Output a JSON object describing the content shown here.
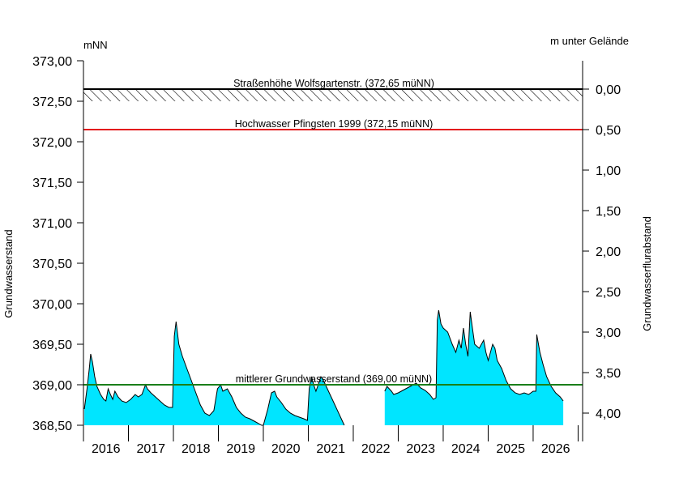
{
  "chart_data": {
    "type": "area",
    "left_unit": "mNN",
    "right_unit": "m unter Gelände",
    "ylabel": "Grundwasserstand",
    "ylabel_right": "Grundwasserflurabstand",
    "ylim": [
      368.5,
      373.0
    ],
    "ground_level": 372.65,
    "y_ticks": [
      "368,50",
      "369,00",
      "369,50",
      "370,00",
      "370,50",
      "371,00",
      "371,50",
      "372,00",
      "372,50",
      "373,00"
    ],
    "y_right_ticks": [
      "0,00",
      "0,50",
      "1,00",
      "1,50",
      "2,00",
      "2,50",
      "3,00",
      "3,50",
      "4,00"
    ],
    "x_labels": [
      "2016",
      "2017",
      "2018",
      "2019",
      "2020",
      "2021",
      "2022",
      "2023",
      "2024",
      "2025",
      "2026"
    ],
    "xlim": [
      2015.5,
      2026.6
    ],
    "fill_color": "#00e5ff",
    "reference_lines": [
      {
        "label": "Straßenhöhe Wolfsgartenstr. (372,65 müNN)",
        "value": 372.65,
        "color": "#000000"
      },
      {
        "label": "Hochwasser Pfingsten 1999 (372,15 müNN)",
        "value": 372.15,
        "color": "#e31a1c"
      },
      {
        "label": "mittlerer Grundwasserstand (369,00 müNN)",
        "value": 369.0,
        "color": "#1a7f1a"
      }
    ],
    "series": [
      {
        "values": [
          [
            2015.52,
            368.7
          ],
          [
            2015.58,
            368.95
          ],
          [
            2015.63,
            369.2
          ],
          [
            2015.66,
            369.38
          ],
          [
            2015.7,
            369.28
          ],
          [
            2015.75,
            369.1
          ],
          [
            2015.8,
            368.98
          ],
          [
            2015.88,
            368.88
          ],
          [
            2015.95,
            368.82
          ],
          [
            2016.0,
            368.8
          ],
          [
            2016.05,
            368.95
          ],
          [
            2016.1,
            368.88
          ],
          [
            2016.15,
            368.82
          ],
          [
            2016.2,
            368.92
          ],
          [
            2016.27,
            368.85
          ],
          [
            2016.35,
            368.8
          ],
          [
            2016.45,
            368.78
          ],
          [
            2016.55,
            368.82
          ],
          [
            2016.65,
            368.88
          ],
          [
            2016.72,
            368.85
          ],
          [
            2016.8,
            368.88
          ],
          [
            2016.88,
            369.0
          ],
          [
            2016.92,
            368.95
          ],
          [
            2017.0,
            368.9
          ],
          [
            2017.1,
            368.85
          ],
          [
            2017.2,
            368.8
          ],
          [
            2017.3,
            368.75
          ],
          [
            2017.4,
            368.72
          ],
          [
            2017.48,
            368.72
          ],
          [
            2017.52,
            369.6
          ],
          [
            2017.56,
            369.78
          ],
          [
            2017.62,
            369.5
          ],
          [
            2017.7,
            369.35
          ],
          [
            2017.8,
            369.2
          ],
          [
            2017.9,
            369.05
          ],
          [
            2018.0,
            368.9
          ],
          [
            2018.1,
            368.75
          ],
          [
            2018.2,
            368.65
          ],
          [
            2018.3,
            368.62
          ],
          [
            2018.4,
            368.68
          ],
          [
            2018.48,
            368.95
          ],
          [
            2018.55,
            369.0
          ],
          [
            2018.6,
            368.92
          ],
          [
            2018.7,
            368.95
          ],
          [
            2018.8,
            368.85
          ],
          [
            2018.9,
            368.72
          ],
          [
            2019.0,
            368.65
          ],
          [
            2019.1,
            368.6
          ],
          [
            2019.2,
            368.58
          ],
          [
            2019.3,
            368.55
          ],
          [
            2019.4,
            368.52
          ],
          [
            2019.46,
            368.5
          ],
          [
            2019.5,
            368.5
          ],
          [
            2019.6,
            368.7
          ],
          [
            2019.68,
            368.9
          ],
          [
            2019.75,
            368.92
          ],
          [
            2019.8,
            368.85
          ],
          [
            2019.9,
            368.78
          ],
          [
            2020.0,
            368.7
          ],
          [
            2020.1,
            368.65
          ],
          [
            2020.2,
            368.62
          ],
          [
            2020.3,
            368.6
          ],
          [
            2020.4,
            368.58
          ],
          [
            2020.48,
            368.56
          ],
          [
            2020.52,
            368.95
          ],
          [
            2020.57,
            369.1
          ],
          [
            2020.62,
            369.0
          ],
          [
            2020.67,
            368.92
          ],
          [
            2020.72,
            369.0
          ],
          [
            2020.78,
            369.1
          ],
          [
            2020.84,
            369.05
          ],
          [
            2021.05,
            368.8
          ],
          [
            2021.3,
            368.5
          ]
        ]
      },
      {
        "values": [
          [
            2022.2,
            368.92
          ],
          [
            2022.25,
            368.98
          ],
          [
            2022.35,
            368.92
          ],
          [
            2022.4,
            368.88
          ],
          [
            2022.5,
            368.9
          ],
          [
            2022.6,
            368.93
          ],
          [
            2022.7,
            368.96
          ],
          [
            2022.8,
            368.99
          ],
          [
            2022.9,
            369.02
          ],
          [
            2023.0,
            368.96
          ],
          [
            2023.1,
            368.93
          ],
          [
            2023.2,
            368.88
          ],
          [
            2023.28,
            368.82
          ],
          [
            2023.34,
            368.84
          ],
          [
            2023.37,
            369.8
          ],
          [
            2023.4,
            369.92
          ],
          [
            2023.45,
            369.75
          ],
          [
            2023.5,
            369.7
          ],
          [
            2023.6,
            369.65
          ],
          [
            2023.7,
            369.5
          ],
          [
            2023.78,
            369.4
          ],
          [
            2023.85,
            369.55
          ],
          [
            2023.9,
            369.45
          ],
          [
            2023.95,
            369.7
          ],
          [
            2024.0,
            369.5
          ],
          [
            2024.05,
            369.35
          ],
          [
            2024.1,
            369.9
          ],
          [
            2024.15,
            369.7
          ],
          [
            2024.2,
            369.5
          ],
          [
            2024.3,
            369.45
          ],
          [
            2024.4,
            369.55
          ],
          [
            2024.45,
            369.4
          ],
          [
            2024.5,
            369.3
          ],
          [
            2024.6,
            369.5
          ],
          [
            2024.65,
            369.45
          ],
          [
            2024.7,
            369.3
          ],
          [
            2024.8,
            369.2
          ],
          [
            2024.9,
            369.05
          ],
          [
            2025.0,
            368.95
          ],
          [
            2025.1,
            368.9
          ],
          [
            2025.2,
            368.88
          ],
          [
            2025.3,
            368.9
          ],
          [
            2025.4,
            368.88
          ],
          [
            2025.5,
            368.92
          ],
          [
            2025.56,
            368.92
          ],
          [
            2025.58,
            369.62
          ],
          [
            2025.65,
            369.4
          ],
          [
            2025.72,
            369.25
          ],
          [
            2025.8,
            369.1
          ],
          [
            2025.9,
            368.98
          ],
          [
            2026.0,
            368.9
          ],
          [
            2026.1,
            368.85
          ],
          [
            2026.17,
            368.8
          ]
        ]
      }
    ]
  }
}
